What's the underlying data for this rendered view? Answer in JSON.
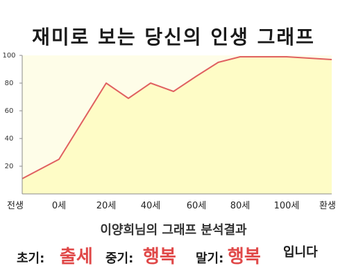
{
  "title": "재미로 보는 당신의 인생 그래프",
  "caption": "이양희님의 그래프 분석결과",
  "verdict": {
    "early_label": "초기:",
    "early_value": "출세",
    "mid_label": "중기:",
    "mid_value": "행복",
    "late_label": "말기:",
    "late_value": "행복",
    "suffix": "입니다"
  },
  "colors": {
    "line": "#e06060",
    "fill": "#fefcc6",
    "plot_bg": "#fefde8",
    "verdict_value": "#e04848"
  },
  "chart_data": {
    "type": "area",
    "x_ticks": [
      "전생",
      "0세",
      "20세",
      "40세",
      "60세",
      "80세",
      "100세",
      "환생"
    ],
    "y_ticks": [
      20,
      40,
      60,
      80,
      100
    ],
    "ylim": [
      0,
      100
    ],
    "grid": false,
    "points": [
      {
        "x": "전생",
        "y": 11
      },
      {
        "x": "0세",
        "y": 25
      },
      {
        "x": "20세",
        "y": 80
      },
      {
        "x": "30세",
        "y": 69
      },
      {
        "x": "40세",
        "y": 80
      },
      {
        "x": "50세",
        "y": 74
      },
      {
        "x": "60세",
        "y": 85
      },
      {
        "x": "70세",
        "y": 95
      },
      {
        "x": "80세",
        "y": 99
      },
      {
        "x": "100세",
        "y": 99
      },
      {
        "x": "환생",
        "y": 97
      }
    ]
  }
}
